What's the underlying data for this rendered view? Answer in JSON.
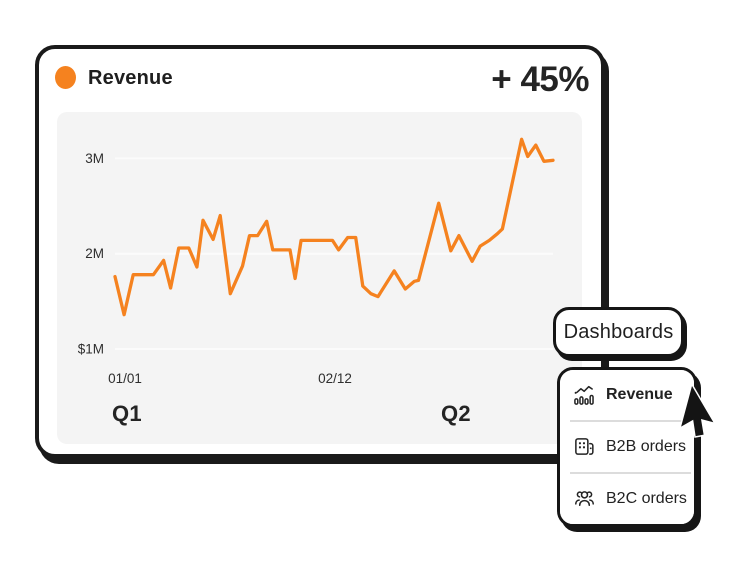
{
  "card": {
    "legend_label": "Revenue",
    "delta_label": "+ 45%"
  },
  "colors": {
    "accent_orange": "#F5821F",
    "panel_gray": "#F4F4F4",
    "ink": "#1A1A1A"
  },
  "chart_data": {
    "type": "line",
    "title": "Revenue",
    "series_name": "Revenue",
    "unit": "USD millions",
    "line_color": "#F5821F",
    "grid_color": "#FBFBFB",
    "grid": true,
    "legend_position": "top-left",
    "ylim": [
      1,
      3.4
    ],
    "y_ticks": [
      {
        "label": "3M",
        "value": 3
      },
      {
        "label": "2M",
        "value": 2
      },
      {
        "label": "$1M",
        "value": 1
      }
    ],
    "x_ticks": [
      {
        "label": "01/01",
        "pos": 68
      },
      {
        "label": "02/12",
        "pos": 278
      }
    ],
    "quarter_labels": [
      {
        "label": "Q1",
        "pos": 70
      },
      {
        "label": "Q2",
        "pos": 399
      }
    ],
    "points": [
      [
        0,
        1.76
      ],
      [
        9,
        1.36
      ],
      [
        18,
        1.78
      ],
      [
        28,
        1.78
      ],
      [
        38,
        1.78
      ],
      [
        48,
        1.93
      ],
      [
        55,
        1.64
      ],
      [
        63,
        2.06
      ],
      [
        73,
        2.06
      ],
      [
        81,
        1.86
      ],
      [
        87,
        2.35
      ],
      [
        97,
        2.15
      ],
      [
        104,
        2.4
      ],
      [
        114,
        1.58
      ],
      [
        126,
        1.87
      ],
      [
        133,
        2.19
      ],
      [
        141,
        2.19
      ],
      [
        150,
        2.34
      ],
      [
        156,
        2.04
      ],
      [
        173,
        2.04
      ],
      [
        178,
        1.74
      ],
      [
        184,
        2.14
      ],
      [
        215,
        2.14
      ],
      [
        221,
        2.04
      ],
      [
        230,
        2.17
      ],
      [
        238,
        2.17
      ],
      [
        245,
        1.66
      ],
      [
        253,
        1.58
      ],
      [
        260,
        1.55
      ],
      [
        276,
        1.82
      ],
      [
        287,
        1.63
      ],
      [
        296,
        1.71
      ],
      [
        300,
        1.72
      ],
      [
        320,
        2.53
      ],
      [
        332,
        2.03
      ],
      [
        340,
        2.19
      ],
      [
        353,
        1.92
      ],
      [
        361,
        2.08
      ],
      [
        370,
        2.14
      ],
      [
        378,
        2.21
      ],
      [
        383,
        2.26
      ],
      [
        402,
        3.2
      ],
      [
        408,
        3.02
      ],
      [
        416,
        3.14
      ],
      [
        424,
        2.97
      ],
      [
        433,
        2.98
      ]
    ]
  },
  "dropdown": {
    "trigger_label": "Dashboards",
    "items": [
      {
        "label": "Revenue",
        "icon": "bar-chart-trend-icon",
        "selected": true
      },
      {
        "label": "B2B orders",
        "icon": "building-icon",
        "selected": false
      },
      {
        "label": "B2C orders",
        "icon": "people-group-icon",
        "selected": false
      }
    ]
  },
  "cursor": {
    "type": "arrow-pointer"
  }
}
